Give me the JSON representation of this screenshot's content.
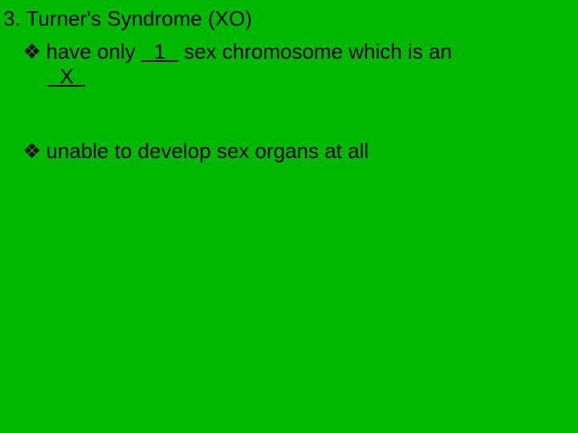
{
  "background_color": "#00b800",
  "text_color": "#000000",
  "font_family": "Arial, sans-serif",
  "font_size": 26,
  "bullet_glyph": "❖",
  "title": {
    "number": "3.",
    "text": "Turner's Syndrome (XO)"
  },
  "line1": {
    "before_blank": "have only",
    "blank_value": "1",
    "after_blank": "sex chromosome which is an"
  },
  "line1b": {
    "blank_value": "X"
  },
  "line2": {
    "text": "unable to develop sex organs at all"
  }
}
